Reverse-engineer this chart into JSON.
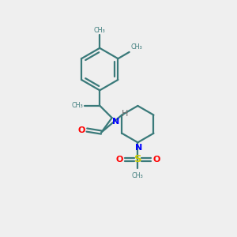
{
  "bg_color": "#efefef",
  "bond_color": "#3a7a7a",
  "N_color": "#0000ff",
  "O_color": "#ff0000",
  "S_color": "#cccc00",
  "H_color": "#707070",
  "lw": 1.6,
  "figsize": [
    3.0,
    3.0
  ],
  "dpi": 100,
  "xlim": [
    0,
    10
  ],
  "ylim": [
    0,
    10
  ]
}
